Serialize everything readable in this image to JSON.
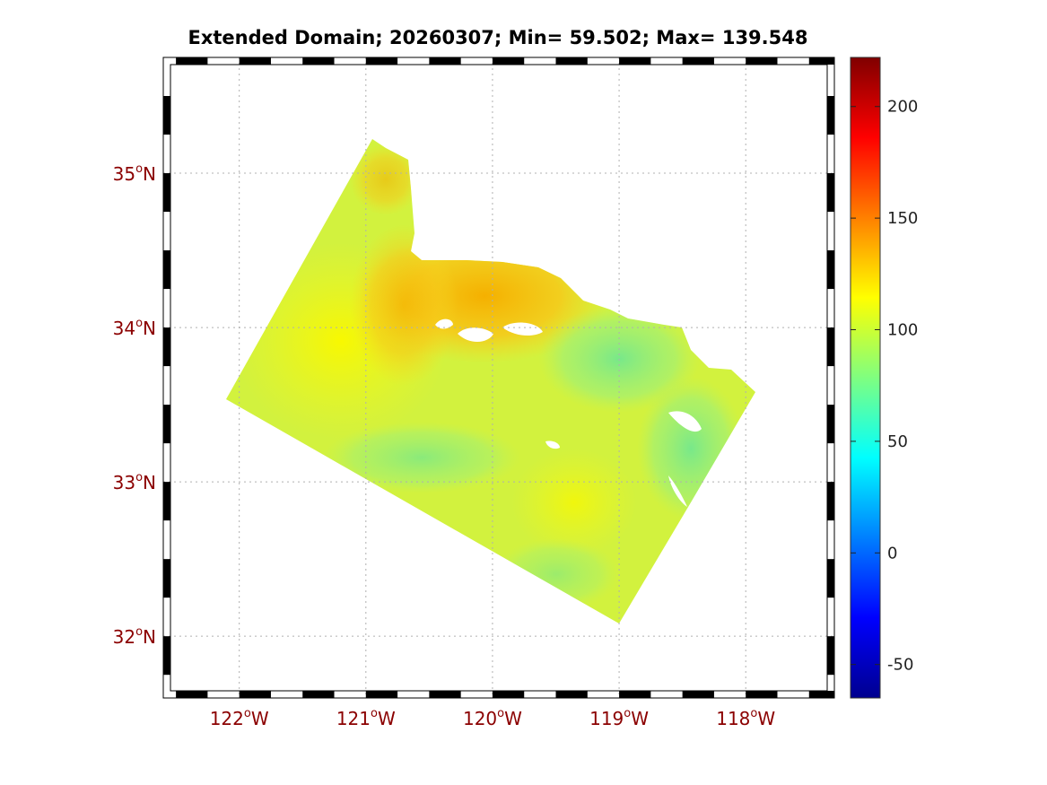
{
  "title": "Extended Domain; 20260307; Min= 59.502; Max= 139.548",
  "map": {
    "lon_range": [
      -122.6,
      -117.3
    ],
    "lat_range": [
      31.6,
      35.75
    ],
    "lat_ticks": [
      {
        "value": 35,
        "deg": "35",
        "hemi": "N"
      },
      {
        "value": 34,
        "deg": "34",
        "hemi": "N"
      },
      {
        "value": 33,
        "deg": "33",
        "hemi": "N"
      },
      {
        "value": 32,
        "deg": "32",
        "hemi": "N"
      }
    ],
    "lon_ticks": [
      {
        "value": -122,
        "deg": "122",
        "hemi": "W"
      },
      {
        "value": -121,
        "deg": "121",
        "hemi": "W"
      },
      {
        "value": -120,
        "deg": "120",
        "hemi": "W"
      },
      {
        "value": -119,
        "deg": "119",
        "hemi": "W"
      },
      {
        "value": -118,
        "deg": "118",
        "hemi": "W"
      }
    ],
    "degree_symbol": "o",
    "grid": true
  },
  "colorbar": {
    "colormap": "jet",
    "range": [
      -65,
      222
    ],
    "ticks": [
      {
        "value": 200,
        "label": "200"
      },
      {
        "value": 150,
        "label": "150"
      },
      {
        "value": 100,
        "label": "100"
      },
      {
        "value": 50,
        "label": "50"
      },
      {
        "value": 0,
        "label": "0"
      },
      {
        "value": -50,
        "label": "-50"
      }
    ]
  },
  "colors": {
    "field_base": "#d8f53a",
    "field_warm": "#f5b70a",
    "field_cool": "#8ff07a",
    "label": "#8b0000"
  }
}
